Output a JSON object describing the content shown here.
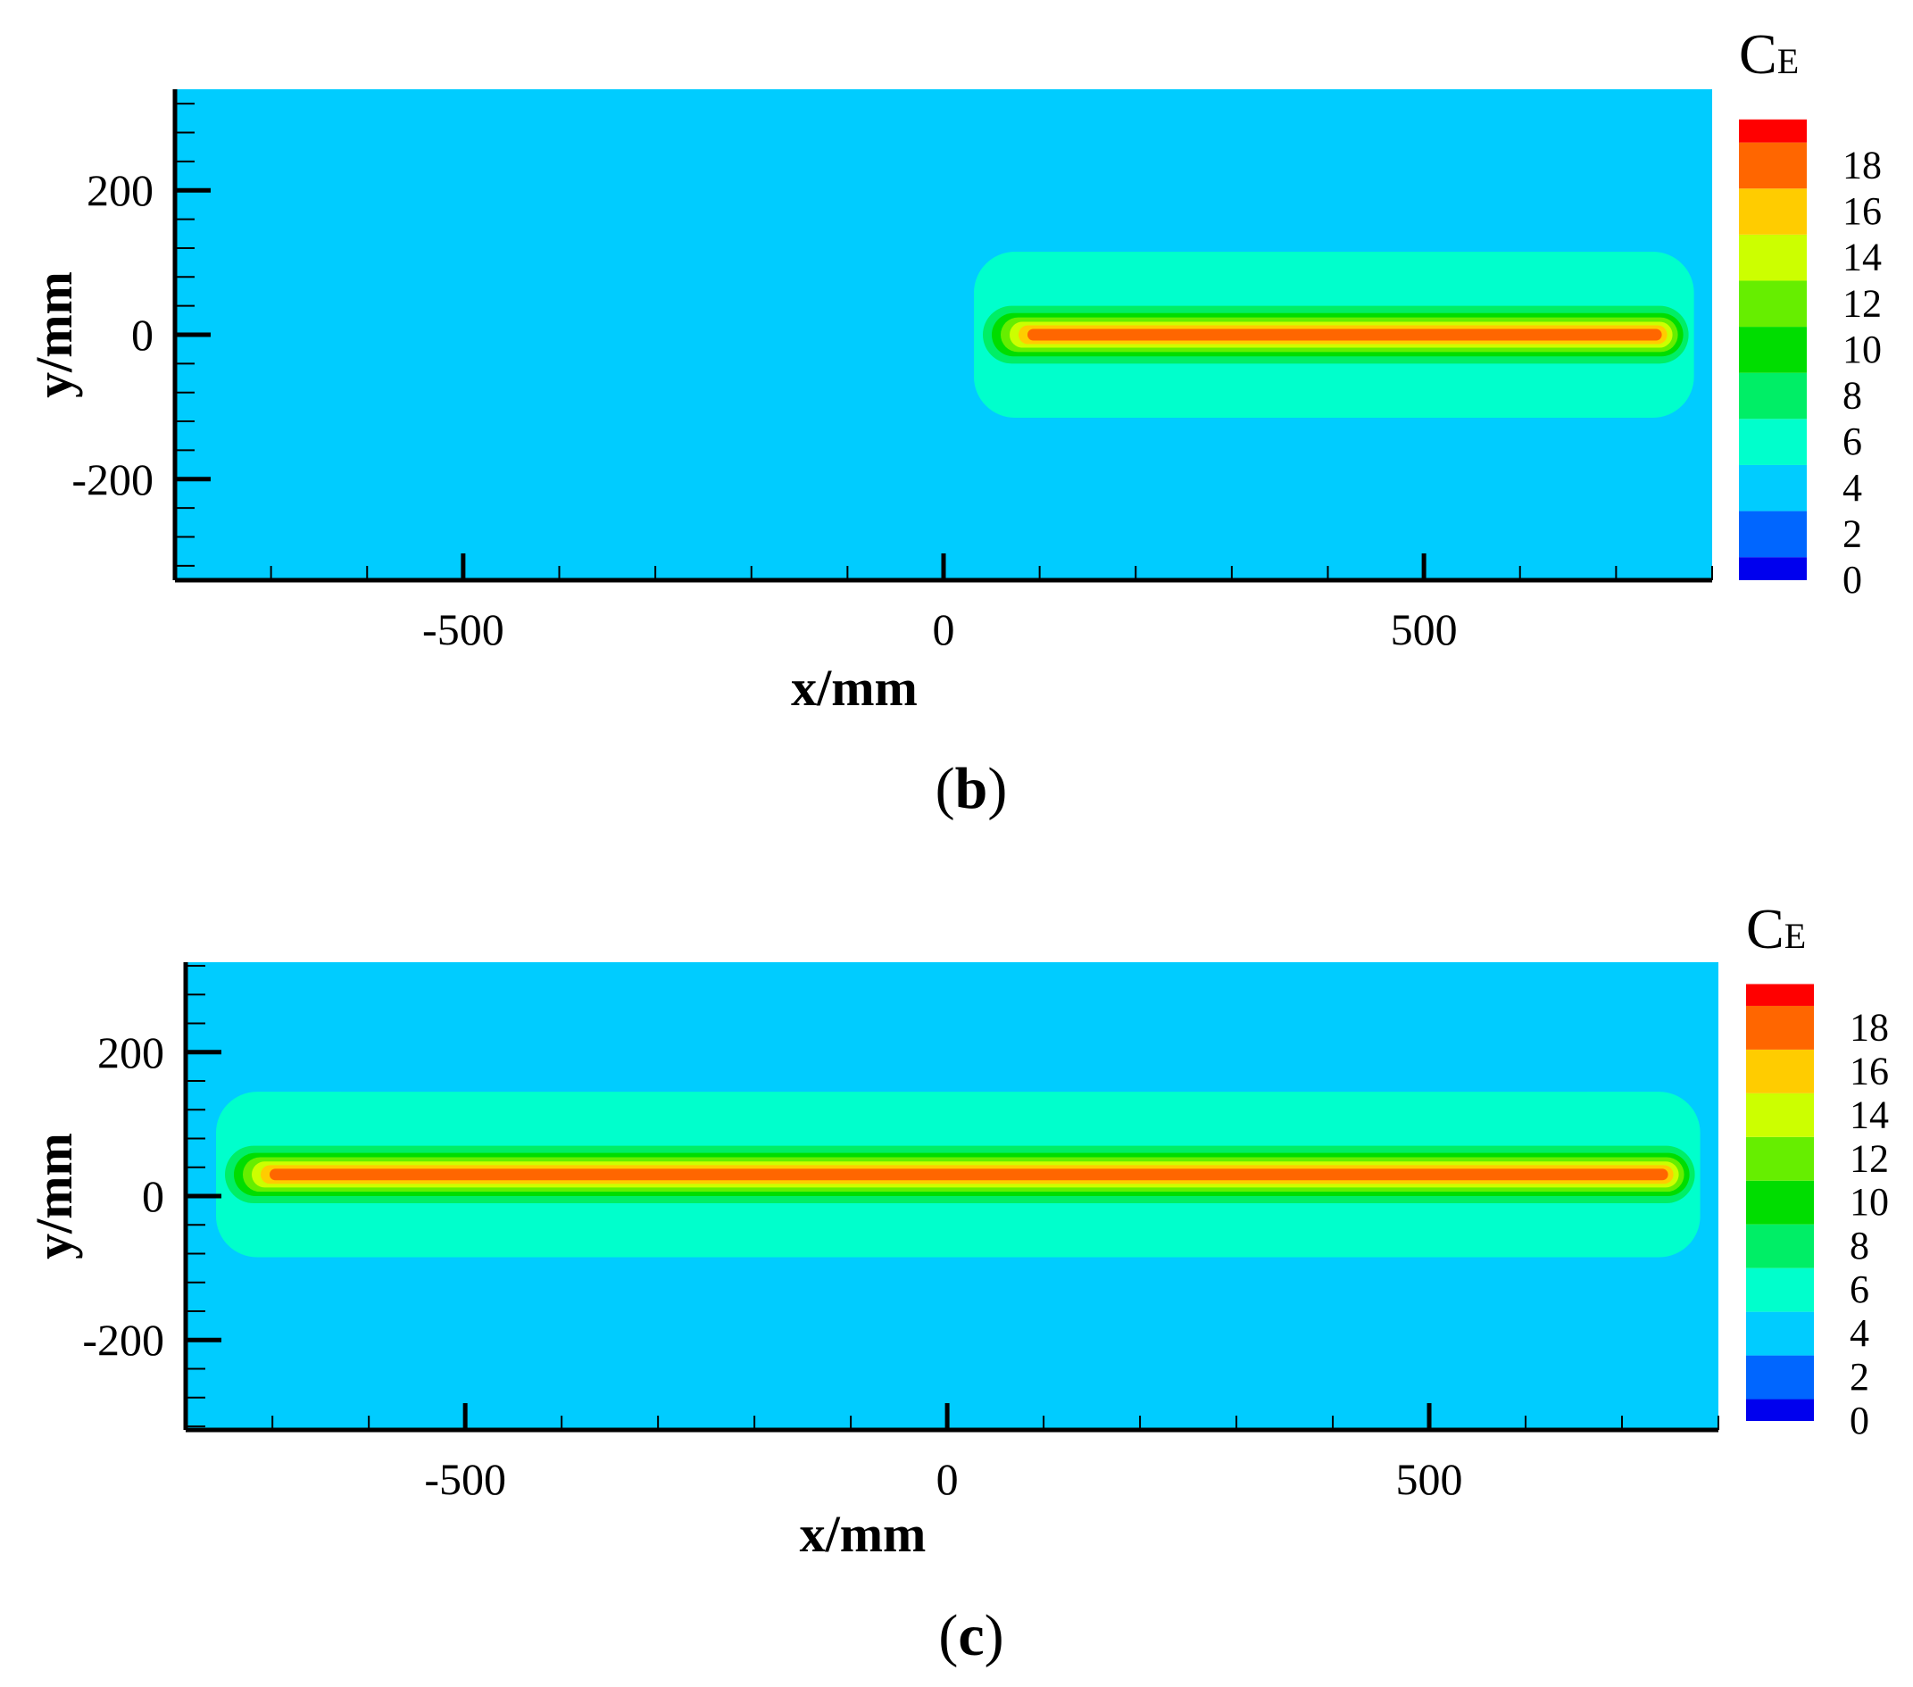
{
  "chart_data": [
    {
      "type": "heatmap",
      "panel_label": "b",
      "xlabel": "x/mm",
      "ylabel": "y/mm",
      "xlim": [
        -800,
        800
      ],
      "ylim": [
        -340,
        340
      ],
      "xticks": [
        -500,
        0,
        500
      ],
      "yticks": [
        200,
        0,
        -200
      ],
      "colorbar": {
        "title": "C",
        "title_sub": "E",
        "levels": [
          0,
          2,
          4,
          6,
          8,
          10,
          12,
          14,
          16,
          18
        ],
        "colors": [
          "#0000ee",
          "#0066ff",
          "#00ccff",
          "#00ffcc",
          "#00ee66",
          "#00dd00",
          "#66ee00",
          "#ccff00",
          "#ffcc00",
          "#ff6600",
          "#ff0000"
        ]
      },
      "field": {
        "background_level": 2,
        "plume_x_start": 0,
        "plume_x_end": 800,
        "plume_axis_y": 0,
        "contours": [
          {
            "level": 2,
            "y_half_width": 140
          },
          {
            "level": 4,
            "y_half_width": 115
          },
          {
            "level": 6,
            "y_half_width": 40
          },
          {
            "level": 8,
            "y_half_width": 30
          },
          {
            "level": 10,
            "y_half_width": 24
          },
          {
            "level": 12,
            "y_half_width": 18
          },
          {
            "level": 14,
            "y_half_width": 13
          },
          {
            "level": 16,
            "y_half_width": 8
          }
        ]
      }
    },
    {
      "type": "heatmap",
      "panel_label": "c",
      "xlabel": "x/mm",
      "ylabel": "y/mm",
      "xlim": [
        -790,
        800
      ],
      "ylim": [
        -325,
        325
      ],
      "xticks": [
        -500,
        0,
        500
      ],
      "yticks": [
        200,
        0,
        -200
      ],
      "colorbar": {
        "title": "C",
        "title_sub": "E",
        "levels": [
          0,
          2,
          4,
          6,
          8,
          10,
          12,
          14,
          16,
          18
        ],
        "colors": [
          "#0000ee",
          "#0066ff",
          "#00ccff",
          "#00ffcc",
          "#00ee66",
          "#00dd00",
          "#66ee00",
          "#ccff00",
          "#ffcc00",
          "#ff6600",
          "#ff0000"
        ]
      },
      "field": {
        "background_level": 2,
        "plume_x_start": -790,
        "plume_x_end": 800,
        "plume_axis_y": 30,
        "contours": [
          {
            "level": 2,
            "y_half_width": 140
          },
          {
            "level": 4,
            "y_half_width": 115
          },
          {
            "level": 6,
            "y_half_width": 40
          },
          {
            "level": 8,
            "y_half_width": 30
          },
          {
            "level": 10,
            "y_half_width": 24
          },
          {
            "level": 12,
            "y_half_width": 18
          },
          {
            "level": 14,
            "y_half_width": 13
          },
          {
            "level": 16,
            "y_half_width": 8
          }
        ]
      }
    }
  ]
}
